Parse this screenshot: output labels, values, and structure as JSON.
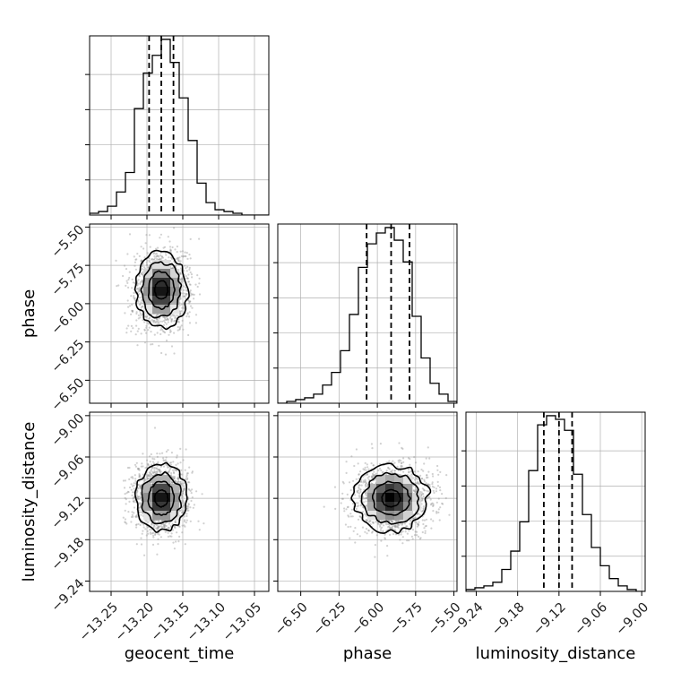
{
  "chart_data": {
    "type": "corner",
    "parameters": [
      "geocent_time",
      "phase",
      "luminosity_distance"
    ],
    "grid": true,
    "colors": {
      "ink": "#000000",
      "grid": "#b0b0b0",
      "scatter": "#9a9a9a"
    },
    "axes": {
      "geocent_time": {
        "label": "geocent_time",
        "range": [
          -13.28,
          -13.03
        ],
        "ticks": [
          -13.25,
          -13.2,
          -13.15,
          -13.1,
          -13.05
        ],
        "tick_labels": [
          "−13.25",
          "−13.20",
          "−13.15",
          "−13.10",
          "−13.05"
        ],
        "median": -13.18,
        "quantiles": [
          -13.197,
          -13.163
        ],
        "std": 0.018,
        "hist_edges": [
          -13.28,
          -13.2675,
          -13.255,
          -13.2425,
          -13.23,
          -13.2175,
          -13.205,
          -13.1925,
          -13.18,
          -13.1675,
          -13.155,
          -13.1425,
          -13.13,
          -13.1175,
          -13.105,
          -13.0925,
          -13.08,
          -13.0675,
          -13.055,
          -13.0425,
          -13.03
        ],
        "hist_counts": [
          1,
          2,
          5,
          13,
          24,
          60,
          80,
          90,
          99,
          86,
          66,
          42,
          18,
          7,
          3,
          2,
          1,
          0,
          0,
          0
        ]
      },
      "phase": {
        "label": "phase",
        "range": [
          -6.65,
          -5.48
        ],
        "ticks": [
          -6.5,
          -6.25,
          -6.0,
          -5.75,
          -5.5
        ],
        "tick_labels": [
          "−6.50",
          "−6.25",
          "−6.00",
          "−5.75",
          "−5.50"
        ],
        "median": -5.91,
        "quantiles": [
          -6.07,
          -5.79
        ],
        "std": 0.12,
        "hist_edges": [
          -6.65,
          -6.5915,
          -6.533,
          -6.4745,
          -6.416,
          -6.3575,
          -6.299,
          -6.2405,
          -6.182,
          -6.1235,
          -6.065,
          -6.0065,
          -5.948,
          -5.8895,
          -5.831,
          -5.7725,
          -5.714,
          -5.6555,
          -5.597,
          -5.5385,
          -5.48
        ],
        "hist_counts": [
          0,
          1,
          2,
          3,
          5,
          10,
          17,
          29,
          49,
          75,
          88,
          94,
          97,
          90,
          78,
          48,
          25,
          11,
          5,
          1
        ]
      },
      "luminosity_distance": {
        "label": "luminosity_distance",
        "range": [
          -9.255,
          -8.995
        ],
        "ticks": [
          -9.24,
          -9.18,
          -9.12,
          -9.06,
          -9.0
        ],
        "tick_labels": [
          "−9.24",
          "−9.18",
          "−9.12",
          "−9.06",
          "−9.00"
        ],
        "median": -9.12,
        "quantiles": [
          -9.142,
          -9.101
        ],
        "std": 0.024,
        "hist_edges": [
          -9.255,
          -9.242,
          -9.229,
          -9.216,
          -9.203,
          -9.19,
          -9.177,
          -9.164,
          -9.151,
          -9.138,
          -9.125,
          -9.112,
          -9.099,
          -9.086,
          -9.073,
          -9.06,
          -9.047,
          -9.034,
          -9.021,
          -9.008,
          -8.995
        ],
        "hist_counts": [
          1,
          2,
          3,
          5,
          12,
          22,
          38,
          66,
          91,
          96,
          94,
          88,
          64,
          42,
          24,
          14,
          7,
          3,
          1,
          0
        ]
      }
    },
    "panels": [
      {
        "row": 0,
        "col": 0,
        "kind": "histogram",
        "param": "geocent_time"
      },
      {
        "row": 1,
        "col": 0,
        "kind": "2d",
        "x": "geocent_time",
        "y": "phase"
      },
      {
        "row": 1,
        "col": 1,
        "kind": "histogram",
        "param": "phase"
      },
      {
        "row": 2,
        "col": 0,
        "kind": "2d",
        "x": "geocent_time",
        "y": "luminosity_distance"
      },
      {
        "row": 2,
        "col": 1,
        "kind": "2d",
        "x": "phase",
        "y": "luminosity_distance"
      },
      {
        "row": 2,
        "col": 2,
        "kind": "histogram",
        "param": "luminosity_distance"
      }
    ]
  }
}
